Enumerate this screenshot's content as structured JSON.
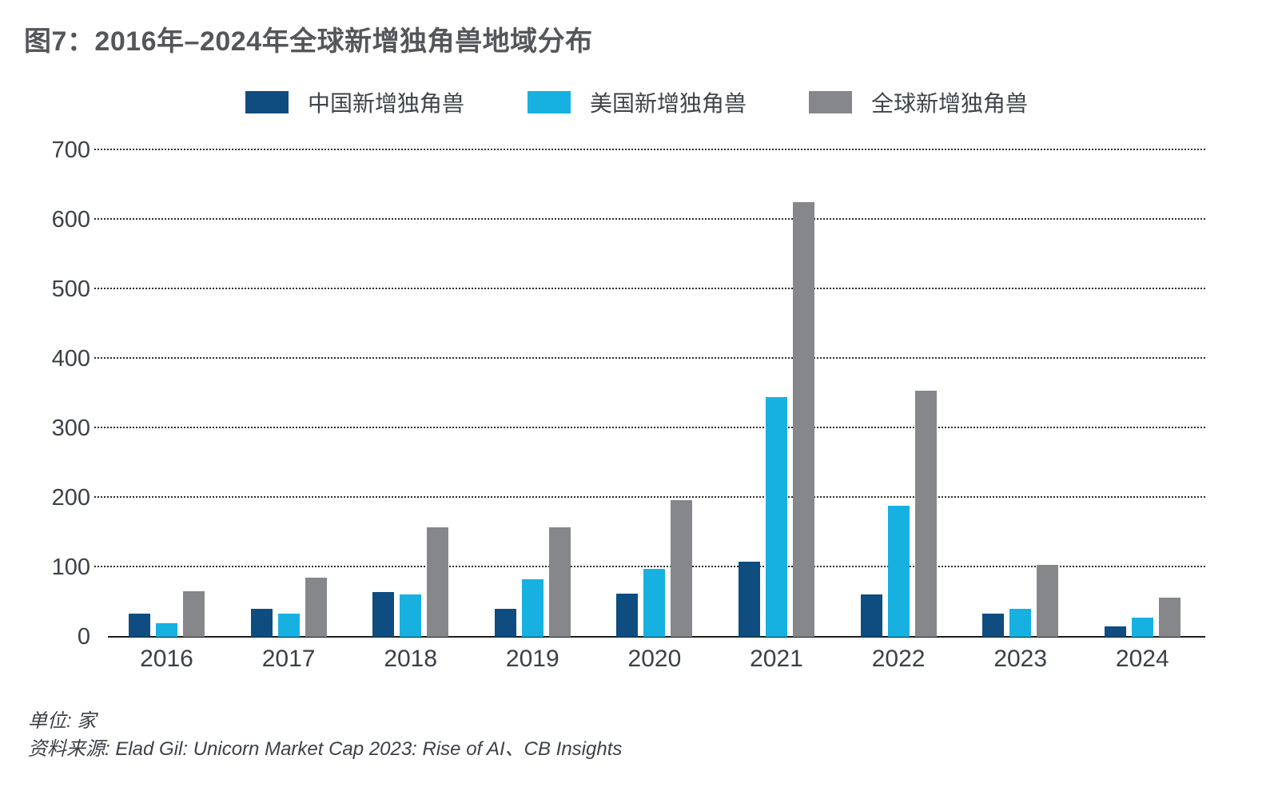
{
  "title": "图7：2016年–2024年全球新增独角兽地域分布",
  "chart_data": {
    "type": "bar",
    "title": "图7：2016年–2024年全球新增独角兽地域分布",
    "categories": [
      "2016",
      "2017",
      "2018",
      "2019",
      "2020",
      "2021",
      "2022",
      "2023",
      "2024"
    ],
    "series": [
      {
        "name": "中国新增独角兽",
        "color": "#0f4c7f",
        "values": [
          33,
          40,
          64,
          40,
          62,
          108,
          61,
          33,
          15
        ]
      },
      {
        "name": "美国新增独角兽",
        "color": "#16b1e0",
        "values": [
          20,
          33,
          61,
          83,
          98,
          345,
          189,
          40,
          28
        ]
      },
      {
        "name": "全球新增独角兽",
        "color": "#85878a",
        "values": [
          65,
          85,
          158,
          158,
          197,
          625,
          354,
          103,
          56
        ]
      }
    ],
    "xlabel": "",
    "ylabel": "",
    "ylim": [
      0,
      700
    ],
    "yticks": [
      0,
      100,
      200,
      300,
      400,
      500,
      600,
      700
    ],
    "grid": "horizontal-dotted",
    "legend_position": "top",
    "unit": "家"
  },
  "footer": {
    "unit_label": "单位: 家",
    "source_label": "资料来源: Elad Gil: Unicorn Market Cap 2023: Rise of AI、CB Insights"
  }
}
